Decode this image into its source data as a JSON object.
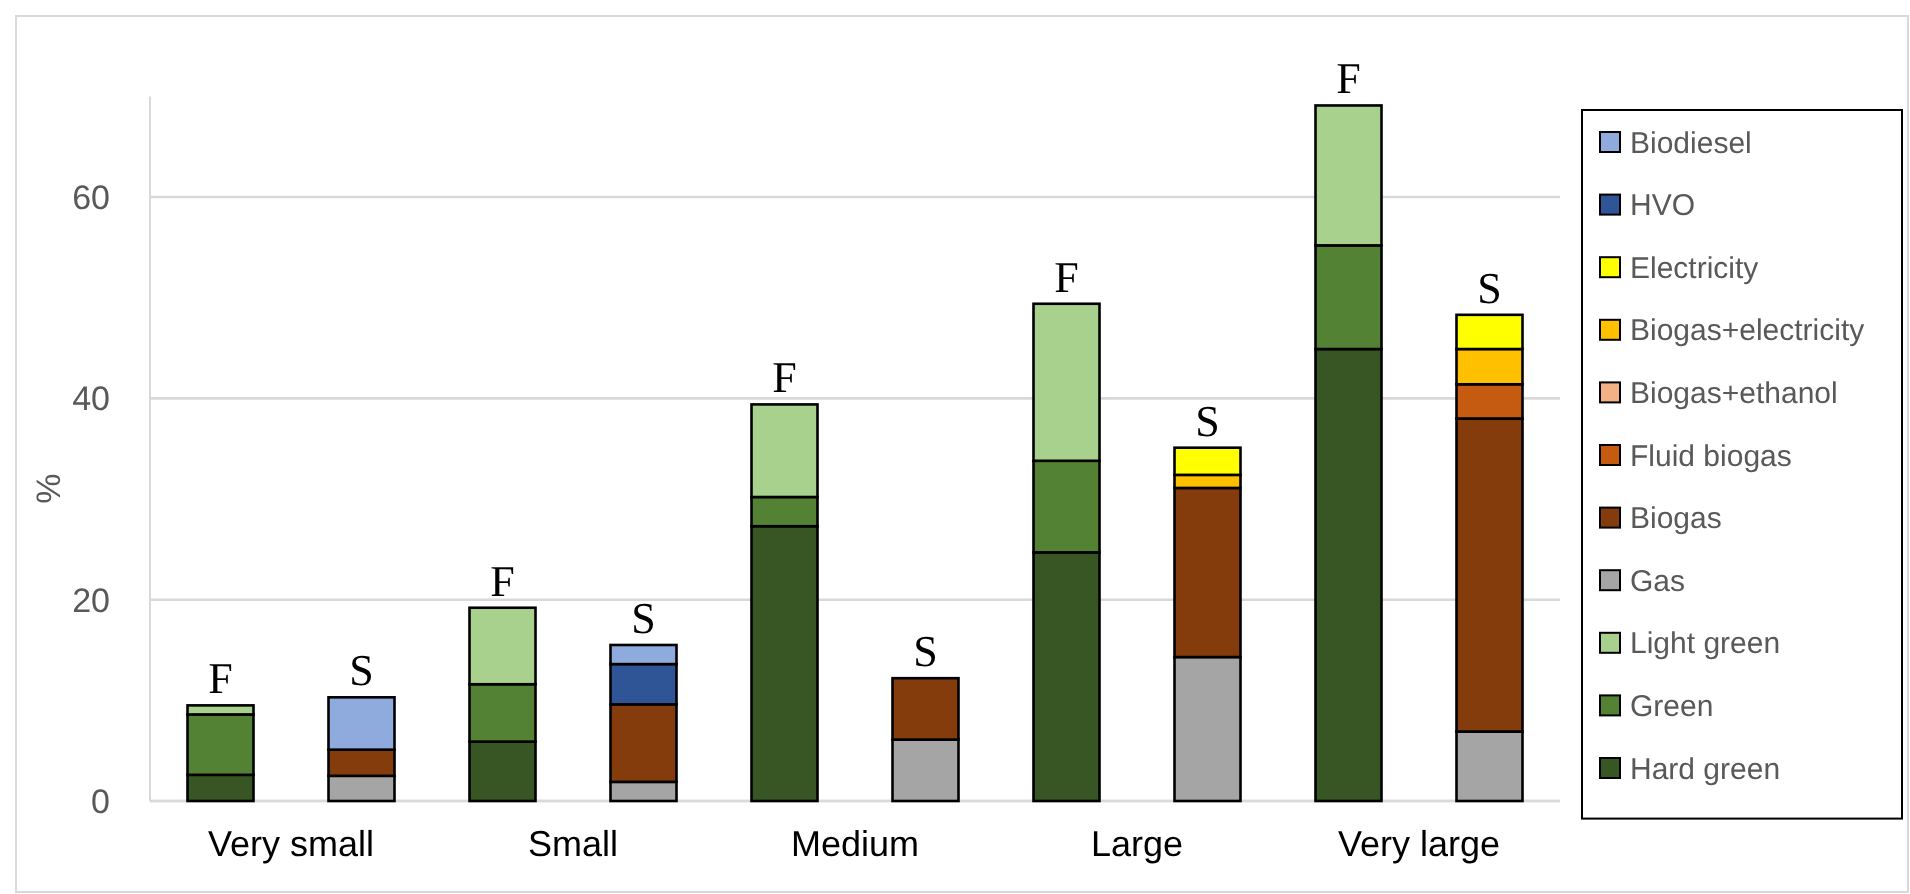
{
  "chart_data": {
    "type": "bar",
    "stacked": true,
    "ylabel": "%",
    "ylim": [
      0,
      70
    ],
    "yticks": [
      0,
      20,
      40,
      60
    ],
    "grid": "y",
    "legend": "right",
    "categories": [
      "Very small",
      null,
      "Small",
      null,
      "Medium",
      null,
      "Large",
      null,
      "Very large",
      null
    ],
    "totals": [
      "F",
      "S",
      "F",
      "S",
      "F",
      "S",
      "F",
      "S",
      "F",
      "S"
    ],
    "series": [
      {
        "name": "Hard green",
        "color": "#375623",
        "values": [
          2.6,
          null,
          5.9,
          null,
          27.3,
          null,
          24.7,
          null,
          44.9,
          null
        ]
      },
      {
        "name": "Green",
        "color": "#548235",
        "values": [
          6.0,
          null,
          5.7,
          null,
          2.9,
          null,
          9.1,
          null,
          10.3,
          null
        ]
      },
      {
        "name": "Light green",
        "color": "#a9d18e",
        "values": [
          0.9,
          null,
          7.6,
          null,
          9.2,
          null,
          15.6,
          null,
          13.9,
          null
        ]
      },
      {
        "name": "Gas",
        "color": "#a5a5a5",
        "values": [
          null,
          2.5,
          null,
          1.9,
          null,
          6.1,
          null,
          14.3,
          null,
          6.9
        ]
      },
      {
        "name": "Biogas",
        "color": "#843c0c",
        "values": [
          null,
          2.6,
          null,
          7.7,
          null,
          6.1,
          null,
          16.8,
          null,
          31.1
        ]
      },
      {
        "name": "Fluid biogas",
        "color": "#c55a11",
        "values": [
          null,
          null,
          null,
          null,
          null,
          null,
          null,
          null,
          null,
          3.4
        ]
      },
      {
        "name": "Biogas+ethanol",
        "color": "#f4b183",
        "values": [
          null,
          null,
          null,
          null,
          null,
          null,
          null,
          null,
          null,
          null
        ]
      },
      {
        "name": "Biogas+electricity",
        "color": "#ffc000",
        "values": [
          null,
          null,
          null,
          null,
          null,
          null,
          null,
          1.3,
          null,
          3.5
        ]
      },
      {
        "name": "Electricity",
        "color": "#ffff00",
        "values": [
          null,
          null,
          null,
          null,
          null,
          null,
          null,
          2.7,
          null,
          3.4
        ]
      },
      {
        "name": "HVO",
        "color": "#2f5597",
        "values": [
          null,
          null,
          null,
          4.0,
          null,
          null,
          null,
          null,
          null,
          null
        ]
      },
      {
        "name": "Biodiesel",
        "color": "#8faadc",
        "values": [
          null,
          5.2,
          null,
          1.9,
          null,
          null,
          null,
          null,
          null,
          null
        ]
      }
    ]
  }
}
